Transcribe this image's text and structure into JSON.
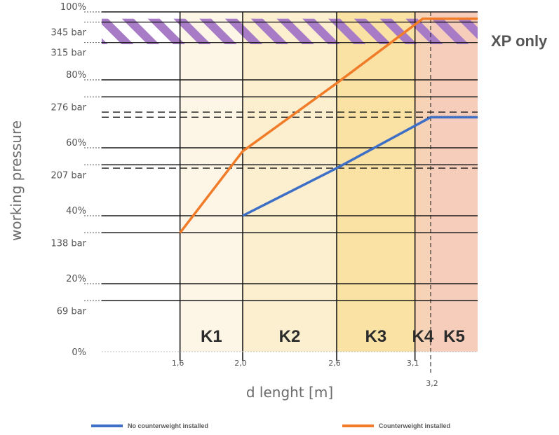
{
  "chart_data": {
    "type": "line",
    "xlabel": "d lenght [m]",
    "ylabel": "working pressure",
    "xlim": [
      1.1,
      3.5
    ],
    "ylim": [
      0,
      100
    ],
    "percent_ticks": [
      {
        "value": 0,
        "label": "0%"
      },
      {
        "value": 20,
        "label": "20%"
      },
      {
        "value": 40,
        "label": "40%"
      },
      {
        "value": 60,
        "label": "60%"
      },
      {
        "value": 80,
        "label": "80%"
      },
      {
        "value": 100,
        "label": "100%"
      }
    ],
    "bar_ticks": [
      {
        "value": 15,
        "label": "69 bar"
      },
      {
        "value": 35,
        "label": "138 bar"
      },
      {
        "value": 55,
        "label": "207 bar"
      },
      {
        "value": 75,
        "label": "276 bar"
      },
      {
        "value": 91,
        "label": "315 bar"
      },
      {
        "value": 97,
        "label": "345 bar"
      }
    ],
    "x_ticks": [
      {
        "value": 1.6,
        "label": "1,6"
      },
      {
        "value": 2.0,
        "label": "2,0"
      },
      {
        "value": 2.6,
        "label": "2,6"
      },
      {
        "value": 3.1,
        "label": "3,1"
      },
      {
        "value": 3.2,
        "label": "3,2"
      }
    ],
    "dashed_levels": [
      69,
      70.5,
      54
    ],
    "zones": [
      {
        "label": "K1",
        "from": 1.6,
        "to": 2.0,
        "color": "#fdf6e6"
      },
      {
        "label": "K2",
        "from": 2.0,
        "to": 2.6,
        "color": "#fcefcf"
      },
      {
        "label": "K3",
        "from": 2.6,
        "to": 3.1,
        "color": "#fae1a4"
      },
      {
        "label": "K4",
        "from": 3.1,
        "to": 3.2,
        "color": "#f6d3b7"
      },
      {
        "label": "K5",
        "from": 3.2,
        "to": 3.5,
        "color": "#f6cdbb"
      }
    ],
    "xp_band": {
      "label": "XP only",
      "from": 90.5,
      "to": 98,
      "color": "#a77bc6"
    },
    "series": [
      {
        "name": "No counterweight installed",
        "color": "#3e6fc6",
        "points": [
          [
            2.0,
            40
          ],
          [
            2.6,
            54
          ],
          [
            3.2,
            69
          ],
          [
            3.5,
            69
          ]
        ]
      },
      {
        "name": "Counterweight installed",
        "color": "#f07c29",
        "points": [
          [
            1.6,
            35
          ],
          [
            2.0,
            59
          ],
          [
            2.6,
            79
          ],
          [
            3.15,
            98
          ],
          [
            3.5,
            98
          ]
        ]
      }
    ]
  }
}
